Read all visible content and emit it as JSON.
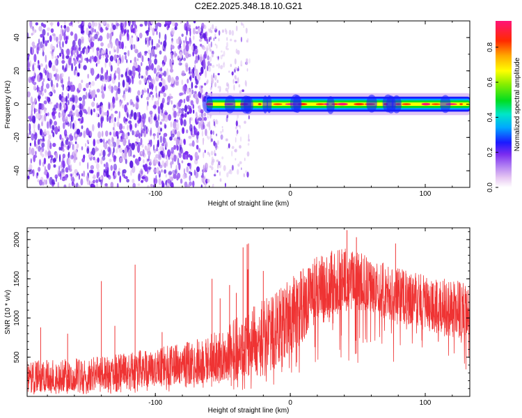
{
  "colors": {
    "snr_line": "#ef3333",
    "spectrogram_noise": "#6a1ee6",
    "background": "#ffffff",
    "axis": "#000000"
  },
  "chart_data": [
    {
      "id": "spectrogram",
      "type": "heatmap",
      "title": "C2E2.2025.348.18.10.G21",
      "xlabel": "Height of straight line (km)",
      "ylabel": "Frequency (Hz)",
      "xlim": [
        -195,
        133
      ],
      "ylim": [
        -50,
        50
      ],
      "xticks": [
        -100,
        0,
        100
      ],
      "xtick_labels": [
        "-100",
        "0",
        "100"
      ],
      "yticks": [
        -40,
        -20,
        0,
        20,
        40
      ],
      "ytick_labels": [
        "-40",
        "-20",
        "0",
        "20",
        "40"
      ],
      "colorbar": {
        "label": "Normalized spectral amplitude",
        "range": [
          0.0,
          0.95
        ],
        "ticks": [
          0.0,
          0.2,
          0.4,
          0.6,
          0.8
        ],
        "tick_labels": [
          "0.0",
          "0.2",
          "0.4",
          "0.6",
          "0.8"
        ],
        "colormap": "rainbow (white-magenta-purple-blue-cyan-green-yellow-red-pink)"
      },
      "regions": [
        {
          "desc": "broadband noise",
          "x_range": [
            -195,
            -62
          ],
          "freq_range": [
            -50,
            50
          ],
          "amplitude": 0.1
        },
        {
          "desc": "scattered sparse noise",
          "x_range": [
            -62,
            -30
          ],
          "freq_range": [
            -50,
            50
          ],
          "amplitude": 0.05
        },
        {
          "desc": "DC carrier line",
          "x_range": [
            -62,
            133
          ],
          "freq_center": 0,
          "bandwidth_hz": 6,
          "amplitude": 0.95
        }
      ]
    },
    {
      "id": "snr",
      "type": "line",
      "title": "",
      "xlabel": "Height of straight line (km)",
      "ylabel": "SNR (10 * v/v)",
      "xlim": [
        -195,
        133
      ],
      "ylim": [
        0,
        2150
      ],
      "xticks": [
        -100,
        0,
        100
      ],
      "xtick_labels": [
        "-100",
        "0",
        "100"
      ],
      "yticks": [
        500,
        1000,
        1500,
        2000
      ],
      "ytick_labels": [
        "500",
        "1000",
        "1500",
        "2000"
      ],
      "series": [
        {
          "name": "SNR",
          "color": "#ef3333",
          "envelope": {
            "x": [
              -195,
              -170,
              -150,
              -120,
              -100,
              -80,
              -60,
              -40,
              -20,
              0,
              20,
              40,
              60,
              80,
              100,
              120,
              133
            ],
            "low": [
              50,
              60,
              70,
              90,
              120,
              150,
              180,
              200,
              250,
              500,
              900,
              1100,
              1050,
              950,
              850,
              750,
              700
            ],
            "mid": [
              220,
              230,
              260,
              300,
              340,
              380,
              420,
              520,
              750,
              1000,
              1300,
              1450,
              1350,
              1250,
              1150,
              1050,
              1000
            ],
            "high": [
              450,
              470,
              500,
              560,
              620,
              680,
              780,
              1000,
              1250,
              1500,
              1800,
              1950,
              1750,
              1650,
              1550,
              1500,
              1450
            ]
          },
          "spikes": [
            {
              "x": -185,
              "y": 880
            },
            {
              "x": -165,
              "y": 800
            },
            {
              "x": -140,
              "y": 1470
            },
            {
              "x": -130,
              "y": 900
            },
            {
              "x": -115,
              "y": 1680
            },
            {
              "x": -95,
              "y": 820
            },
            {
              "x": -58,
              "y": 1500
            },
            {
              "x": -52,
              "y": 1250
            },
            {
              "x": -45,
              "y": 1420
            },
            {
              "x": -40,
              "y": 1320
            },
            {
              "x": -35,
              "y": 1900
            },
            {
              "x": -32,
              "y": 1940
            },
            {
              "x": -31,
              "y": 1950
            },
            {
              "x": -31.5,
              "y": 1620
            },
            {
              "x": -20,
              "y": 1600
            },
            {
              "x": 42,
              "y": 2120
            },
            {
              "x": 49,
              "y": 2030
            },
            {
              "x": 78,
              "y": 1950
            }
          ]
        }
      ]
    }
  ]
}
